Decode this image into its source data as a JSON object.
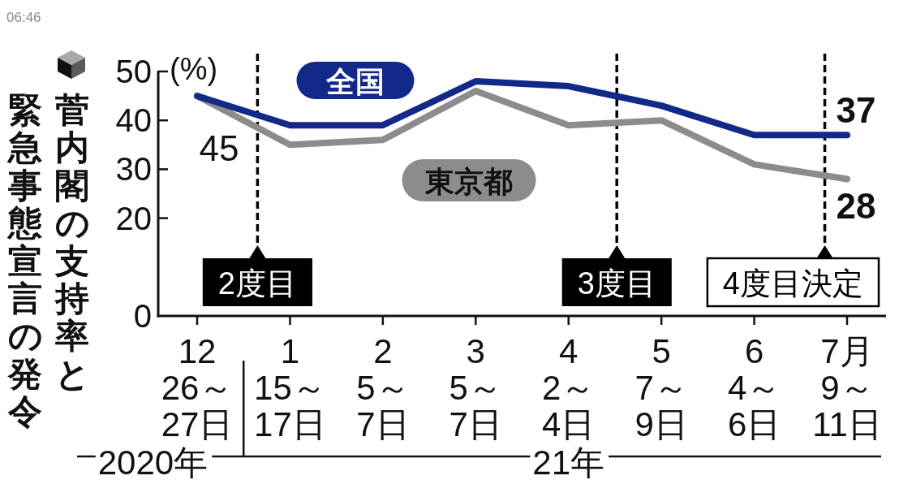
{
  "chart_data": {
    "type": "line",
    "title": "菅内閣の支持率と緊急事態宣言の発令",
    "ylabel": "(%)",
    "categories": [
      "12\n26～\n27日",
      "1\n15～\n17日",
      "2\n5～\n7日",
      "3\n5～\n7日",
      "4\n2～\n4日",
      "5\n7～\n9日",
      "6\n4～\n6日",
      "7月\n9～\n11日"
    ],
    "series": [
      {
        "name": "全国",
        "color": "#12298a",
        "values": [
          45,
          39,
          39,
          48,
          47,
          43,
          37,
          37
        ],
        "value_labels": [
          "45",
          null,
          null,
          null,
          null,
          null,
          null,
          "37"
        ]
      },
      {
        "name": "東京都",
        "color": "#8c8c8c",
        "values": [
          45,
          35,
          36,
          46,
          39,
          40,
          31,
          28
        ],
        "value_labels": [
          null,
          null,
          null,
          null,
          null,
          null,
          null,
          "28"
        ]
      }
    ],
    "ylim": [
      0,
      50
    ],
    "yticks": [
      0,
      20,
      30,
      40,
      50
    ],
    "annotations": [
      "06:46",
      "2度目",
      "3度目",
      "4度目決定",
      "2020年",
      "21年"
    ]
  }
}
